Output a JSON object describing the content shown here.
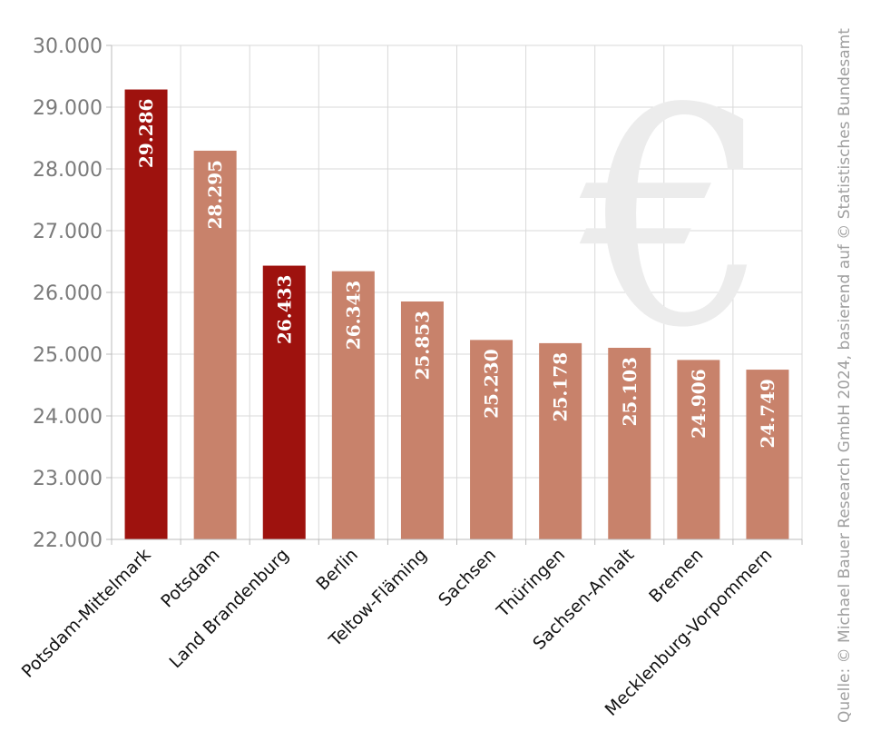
{
  "chart_data": {
    "type": "bar",
    "categories": [
      "Potsdam-Mittelmark",
      "Potsdam",
      "Land Brandenburg",
      "Berlin",
      "Teltow-Fläming",
      "Sachsen",
      "Thüringen",
      "Sachsen-Anhalt",
      "Bremen",
      "Mecklenburg-Vorpommern"
    ],
    "values": [
      29286,
      28295,
      26433,
      26343,
      25853,
      25230,
      25178,
      25103,
      24906,
      24749
    ],
    "value_labels": [
      "29.286",
      "28.295",
      "26.433",
      "26.343",
      "25.853",
      "25.230",
      "25.178",
      "25.103",
      "24.906",
      "24.749"
    ],
    "highlighted": [
      true,
      false,
      true,
      false,
      false,
      false,
      false,
      false,
      false,
      false
    ],
    "ylim": [
      22000,
      30000
    ],
    "yticks": [
      22000,
      23000,
      24000,
      25000,
      26000,
      27000,
      28000,
      29000,
      30000
    ],
    "ytick_labels": [
      "22.000",
      "23.000",
      "24.000",
      "25.000",
      "26.000",
      "27.000",
      "28.000",
      "29.000",
      "30.000"
    ],
    "grid": true,
    "colors": {
      "highlight": "#9e120e",
      "normal": "#c8826b",
      "grid": "#d9d9d9",
      "axis": "#bbbbbb"
    },
    "watermark": "€"
  },
  "source_text": "Quelle: © Michael Bauer Research GmbH 2024, basierend auf © Statistisches Bundesamt"
}
